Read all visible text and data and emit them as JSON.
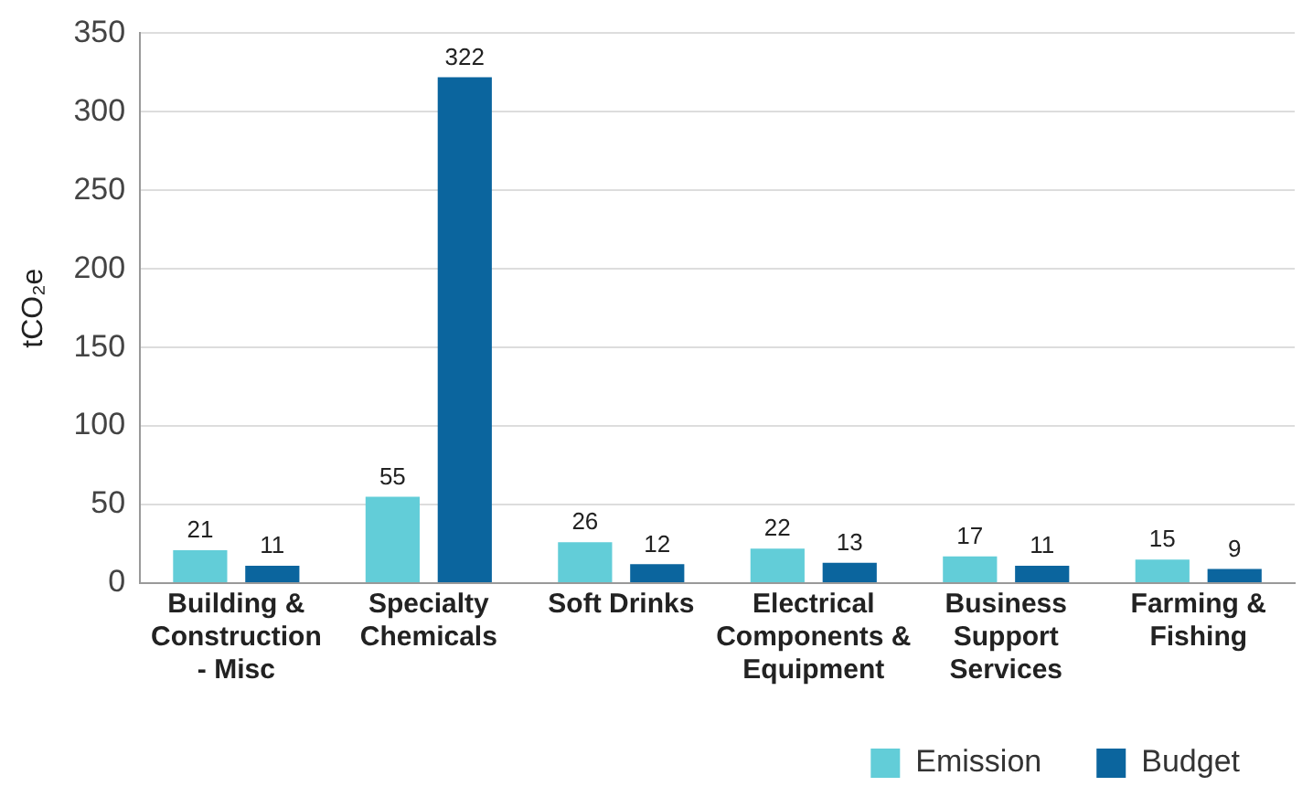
{
  "chart_data": {
    "type": "bar",
    "ylabel": "tCO₂e",
    "categories": [
      "Building & Construction - Misc",
      "Specialty Chemicals",
      "Soft Drinks",
      "Electrical Components & Equipment",
      "Business Support Services",
      "Farming & Fishing"
    ],
    "series": [
      {
        "name": "Emission",
        "color": "#62cdd8",
        "values": [
          21,
          55,
          26,
          22,
          17,
          15
        ]
      },
      {
        "name": "Budget",
        "color": "#0b659e",
        "values": [
          11,
          322,
          12,
          13,
          11,
          9
        ]
      }
    ],
    "ylim": [
      0,
      350
    ],
    "yticks": [
      0,
      50,
      100,
      150,
      200,
      250,
      300,
      350
    ],
    "grid": "y",
    "legend": "bottom right",
    "data_labels": true
  }
}
